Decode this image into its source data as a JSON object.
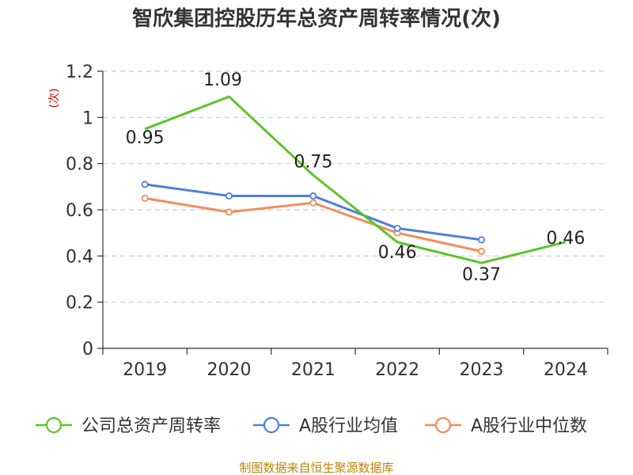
{
  "chart_data": {
    "type": "line",
    "title": "智欣集团控股历年总资产周转率情况(次)",
    "ylabel": "(次)",
    "xlabel": "",
    "categories": [
      "2019",
      "2020",
      "2021",
      "2022",
      "2023",
      "2024"
    ],
    "ylim": [
      0,
      1.2
    ],
    "yticks": [
      "0",
      "0.2",
      "0.4",
      "0.6",
      "0.8",
      "1",
      "1.2"
    ],
    "grid": true,
    "legend_position": "bottom",
    "series": [
      {
        "name": "公司总资产周转率",
        "color": "#5cc42a",
        "values": [
          0.95,
          1.09,
          0.75,
          0.46,
          0.37,
          0.46
        ],
        "labels": [
          "0.95",
          "1.09",
          "0.75",
          "0.46",
          "0.37",
          "0.46"
        ]
      },
      {
        "name": "A股行业均值",
        "color": "#4f7fdc",
        "values": [
          0.71,
          0.66,
          0.66,
          0.52,
          0.47,
          null
        ]
      },
      {
        "name": "A股行业中位数",
        "color": "#f58c5a",
        "values": [
          0.65,
          0.59,
          0.63,
          0.5,
          0.42,
          null
        ]
      }
    ]
  },
  "source": "制图数据来自恒生聚源数据库"
}
